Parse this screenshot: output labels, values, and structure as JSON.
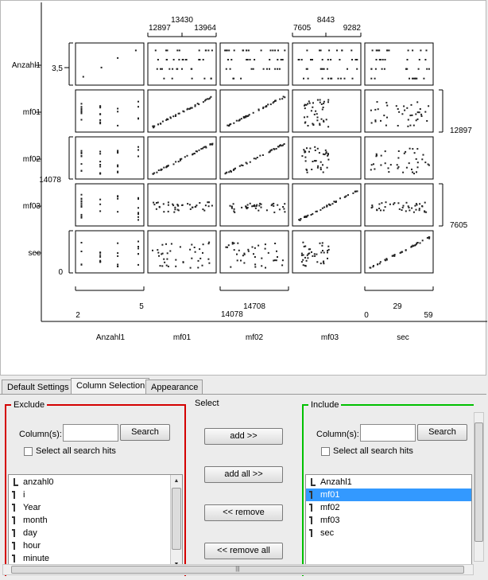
{
  "matrix": {
    "columns": [
      "Anzahl1",
      "mf01",
      "mf02",
      "mf03",
      "sec"
    ],
    "row_labels": [
      "Anzahl1",
      "mf01",
      "mf02",
      "mf03",
      "sec"
    ],
    "top_axis_labels": [
      {
        "min": "12897",
        "mid": "13430",
        "max": "13964"
      },
      {
        "min": "7605",
        "mid": "8443",
        "max": "9282"
      }
    ],
    "bottom_axis_labels": [
      {
        "min": "2",
        "max": "5"
      },
      {
        "min": "14078",
        "mid": "14708"
      },
      {
        "min": "0",
        "mid": "29",
        "max": "59"
      }
    ],
    "left_axis_labels": {
      "anzahl": "3,5",
      "mf02": "14078",
      "sec": "0"
    },
    "right_axis_labels": {
      "mf01": "12897",
      "mf03": "7605"
    }
  },
  "tabs": [
    {
      "label": "Default Settings",
      "active": false
    },
    {
      "label": "Column Selection",
      "active": true
    },
    {
      "label": "Appearance",
      "active": false
    }
  ],
  "exclude": {
    "title": "Exclude",
    "columns_label": "Column(s):",
    "search_value": "",
    "search_button": "Search",
    "select_all_label": "Select all search hits",
    "items": [
      {
        "label": "anzahl0",
        "type": "long"
      },
      {
        "label": "i",
        "type": "int"
      },
      {
        "label": "Year",
        "type": "int"
      },
      {
        "label": "month",
        "type": "int"
      },
      {
        "label": "day",
        "type": "int"
      },
      {
        "label": "hour",
        "type": "int"
      },
      {
        "label": "minute",
        "type": "int"
      }
    ]
  },
  "select": {
    "title": "Select",
    "add_label": "add >>",
    "add_all_label": "add all >>",
    "remove_label": "<< remove",
    "remove_all_label": "<< remove all"
  },
  "include": {
    "title": "Include",
    "columns_label": "Column(s):",
    "search_value": "",
    "search_button": "Search",
    "select_all_label": "Select all search hits",
    "items": [
      {
        "label": "Anzahl1",
        "type": "long",
        "selected": false
      },
      {
        "label": "mf01",
        "type": "int",
        "selected": true
      },
      {
        "label": "mf02",
        "type": "int",
        "selected": false
      },
      {
        "label": "mf03",
        "type": "int",
        "selected": false
      },
      {
        "label": "sec",
        "type": "int",
        "selected": false
      }
    ]
  },
  "colors": {
    "exclude_border": "#d40000",
    "include_border": "#00c000",
    "selection": "#3399ff"
  }
}
